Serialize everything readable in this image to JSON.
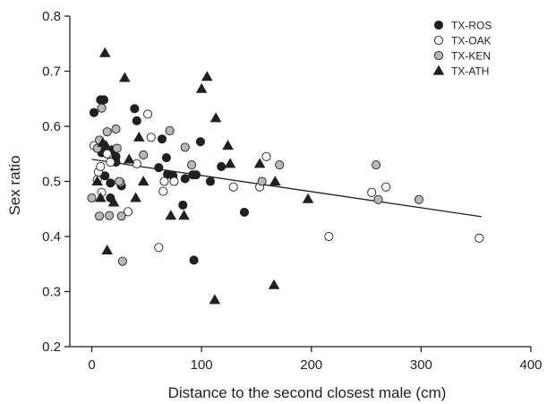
{
  "chart_data": {
    "type": "scatter",
    "title": "",
    "xlabel": "Distance to the second closest male (cm)",
    "ylabel": "Sex ratio",
    "xlim": [
      -20,
      400
    ],
    "ylim": [
      0.2,
      0.8
    ],
    "xticks": [
      0,
      100,
      200,
      300,
      400
    ],
    "yticks": [
      0.2,
      0.3,
      0.4,
      0.5,
      0.6,
      0.7,
      0.8
    ],
    "xtick_labels": [
      "0",
      "100",
      "200",
      "300",
      "400"
    ],
    "ytick_labels": [
      "0.2",
      "0.3",
      "0.4",
      "0.5",
      "0.6",
      "0.7",
      "0.8"
    ],
    "grid": false,
    "legend_position": "top-right",
    "series": [
      {
        "name": "TX-ROS",
        "marker": "filled-circle",
        "color": "#231f20",
        "points": [
          [
            2,
            0.625
          ],
          [
            8,
            0.648
          ],
          [
            11,
            0.648
          ],
          [
            39,
            0.632
          ],
          [
            41,
            0.61
          ],
          [
            5,
            0.565
          ],
          [
            9,
            0.552
          ],
          [
            18,
            0.557
          ],
          [
            22,
            0.545
          ],
          [
            12,
            0.51
          ],
          [
            17,
            0.497
          ],
          [
            27,
            0.492
          ],
          [
            64,
            0.577
          ],
          [
            61,
            0.525
          ],
          [
            68,
            0.543
          ],
          [
            69,
            0.513
          ],
          [
            74,
            0.51
          ],
          [
            85,
            0.505
          ],
          [
            92,
            0.512
          ],
          [
            95,
            0.512
          ],
          [
            99,
            0.572
          ],
          [
            108,
            0.5
          ],
          [
            118,
            0.527
          ],
          [
            139,
            0.444
          ],
          [
            83,
            0.457
          ],
          [
            93,
            0.357
          ],
          [
            17,
            0.47
          ],
          [
            22,
            0.535
          ]
        ]
      },
      {
        "name": "TX-OAK",
        "marker": "open-circle",
        "color": "#ffffff",
        "points": [
          [
            2,
            0.565
          ],
          [
            6,
            0.517
          ],
          [
            8,
            0.527
          ],
          [
            9,
            0.48
          ],
          [
            5,
            0.503
          ],
          [
            14,
            0.55
          ],
          [
            17,
            0.535
          ],
          [
            26,
            0.498
          ],
          [
            33,
            0.445
          ],
          [
            41,
            0.532
          ],
          [
            51,
            0.622
          ],
          [
            54,
            0.58
          ],
          [
            61,
            0.38
          ],
          [
            65,
            0.482
          ],
          [
            66,
            0.5
          ],
          [
            75,
            0.5
          ],
          [
            129,
            0.49
          ],
          [
            153,
            0.49
          ],
          [
            159,
            0.545
          ],
          [
            216,
            0.4
          ],
          [
            255,
            0.48
          ],
          [
            268,
            0.49
          ],
          [
            353,
            0.397
          ]
        ]
      },
      {
        "name": "TX-KEN",
        "marker": "gray-circle",
        "color": "#b8b8b8",
        "points": [
          [
            0,
            0.47
          ],
          [
            5,
            0.56
          ],
          [
            7,
            0.575
          ],
          [
            9,
            0.633
          ],
          [
            14,
            0.59
          ],
          [
            16,
            0.438
          ],
          [
            22,
            0.595
          ],
          [
            23,
            0.56
          ],
          [
            25,
            0.5
          ],
          [
            27,
            0.437
          ],
          [
            7,
            0.437
          ],
          [
            28,
            0.355
          ],
          [
            47,
            0.548
          ],
          [
            71,
            0.592
          ],
          [
            85,
            0.562
          ],
          [
            91,
            0.53
          ],
          [
            155,
            0.5
          ],
          [
            171,
            0.53
          ],
          [
            259,
            0.53
          ],
          [
            261,
            0.467
          ],
          [
            298,
            0.467
          ]
        ]
      },
      {
        "name": "TX-ATH",
        "marker": "filled-triangle",
        "color": "#231f20",
        "points": [
          [
            12,
            0.733
          ],
          [
            30,
            0.688
          ],
          [
            10,
            0.57
          ],
          [
            13,
            0.565
          ],
          [
            5,
            0.5
          ],
          [
            8,
            0.47
          ],
          [
            20,
            0.462
          ],
          [
            14,
            0.375
          ],
          [
            34,
            0.54
          ],
          [
            43,
            0.58
          ],
          [
            47,
            0.5
          ],
          [
            40,
            0.47
          ],
          [
            72,
            0.438
          ],
          [
            84,
            0.438
          ],
          [
            100,
            0.668
          ],
          [
            105,
            0.69
          ],
          [
            113,
            0.615
          ],
          [
            124,
            0.565
          ],
          [
            126,
            0.532
          ],
          [
            153,
            0.532
          ],
          [
            167,
            0.5
          ],
          [
            197,
            0.468
          ],
          [
            112,
            0.285
          ],
          [
            166,
            0.312
          ]
        ]
      }
    ],
    "trendline": {
      "x": [
        0,
        355
      ],
      "y": [
        0.54,
        0.436
      ]
    }
  }
}
